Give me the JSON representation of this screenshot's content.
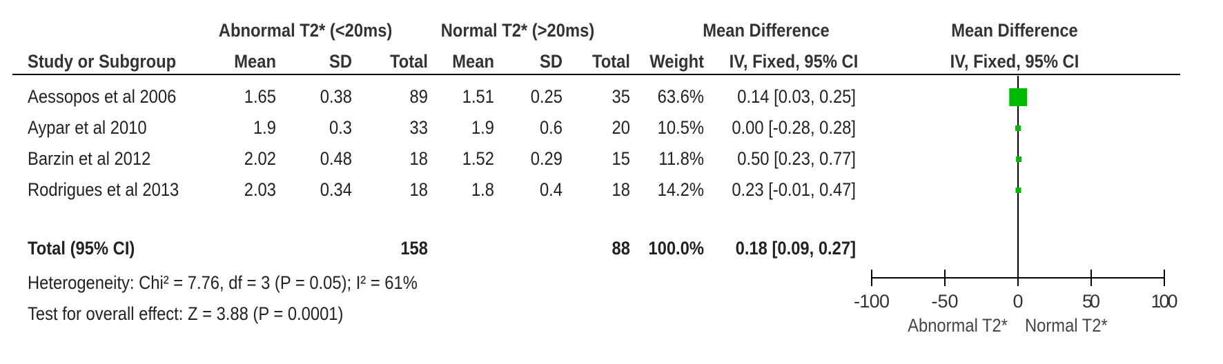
{
  "headers": {
    "group1": "Abnormal T2* (<20ms)",
    "group2": "Normal T2* (>20ms)",
    "effect_top": "Mean Difference",
    "effect_method": "IV, Fixed, 95% CI",
    "plot_top": "Mean Difference",
    "plot_method": "IV, Fixed, 95% CI",
    "study": "Study or Subgroup",
    "mean1": "Mean",
    "sd1": "SD",
    "total1": "Total",
    "mean2": "Mean",
    "sd2": "SD",
    "total2": "Total",
    "weight": "Weight"
  },
  "rows": [
    {
      "study": "Aessopos et al 2006",
      "mean1": "1.65",
      "sd1": "0.38",
      "total1": "89",
      "mean2": "1.51",
      "sd2": "0.25",
      "total2": "35",
      "weight": "63.6%",
      "ci": "0.14 [0.03, 0.25]"
    },
    {
      "study": "Aypar et al 2010",
      "mean1": "1.9",
      "sd1": "0.3",
      "total1": "33",
      "mean2": "1.9",
      "sd2": "0.6",
      "total2": "20",
      "weight": "10.5%",
      "ci": "0.00 [-0.28, 0.28]"
    },
    {
      "study": "Barzin et al 2012",
      "mean1": "2.02",
      "sd1": "0.48",
      "total1": "18",
      "mean2": "1.52",
      "sd2": "0.29",
      "total2": "15",
      "weight": "11.8%",
      "ci": "0.50 [0.23, 0.77]"
    },
    {
      "study": "Rodrigues et al 2013",
      "mean1": "2.03",
      "sd1": "0.34",
      "total1": "18",
      "mean2": "1.8",
      "sd2": "0.4",
      "total2": "18",
      "weight": "14.2%",
      "ci": "0.23 [-0.01, 0.47]"
    }
  ],
  "total_row": {
    "label": "Total (95% CI)",
    "total1": "158",
    "total2": "88",
    "weight": "100.0%",
    "ci": "0.18 [0.09, 0.27]"
  },
  "footer": {
    "heterogeneity": "Heterogeneity: Chi² = 7.76, df = 3 (P = 0.05); I² = 61%",
    "overall": "Test for overall effect: Z = 3.88 (P = 0.0001)"
  },
  "axis_labels": {
    "left": "Abnormal T2*",
    "right": "Normal T2*"
  },
  "chart_data": {
    "type": "scatter",
    "subtype": "forest-plot",
    "x": [
      0.14,
      0.0,
      0.5,
      0.23
    ],
    "ci_low": [
      0.03,
      -0.28,
      0.23,
      -0.01
    ],
    "ci_high": [
      0.25,
      0.28,
      0.77,
      0.47
    ],
    "weights": [
      63.6,
      10.5,
      11.8,
      14.2
    ],
    "pooled": {
      "estimate": 0.18,
      "ci_low": 0.09,
      "ci_high": 0.27
    },
    "xlim": [
      -100,
      100
    ],
    "xticks": [
      -100,
      -50,
      0,
      50,
      100
    ],
    "tick_labels": [
      "-100",
      "-50",
      "0",
      "50",
      "100"
    ],
    "reference_line": 0,
    "marker_color": "#00bb00"
  }
}
